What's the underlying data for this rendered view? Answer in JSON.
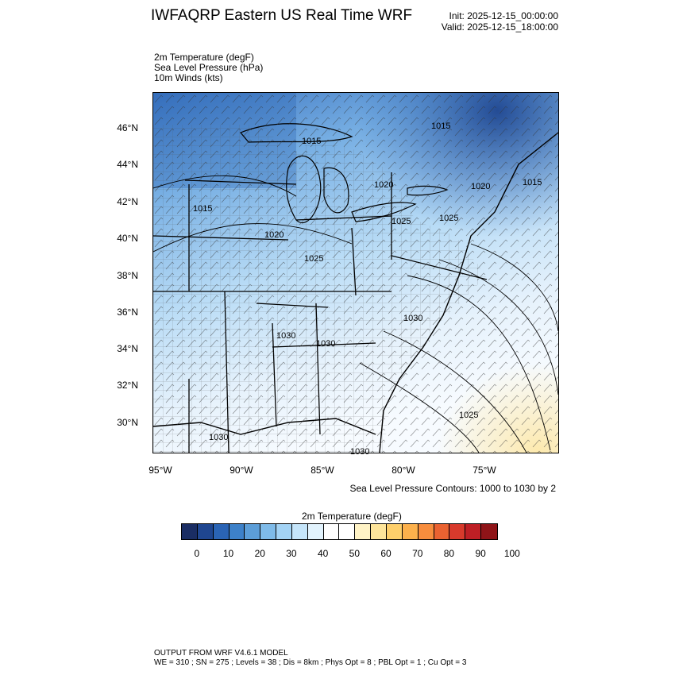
{
  "header": {
    "title": "IWFAQRP Eastern US Real Time WRF",
    "init": "Init: 2025-12-15_00:00:00",
    "valid": "Valid: 2025-12-15_18:00:00"
  },
  "fields": [
    "2m Temperature   (degF)",
    "Sea Level Pressure   (hPa)",
    "10m Winds   (kts)"
  ],
  "map": {
    "lat_labels": [
      "46°N",
      "44°N",
      "42°N",
      "40°N",
      "38°N",
      "36°N",
      "34°N",
      "32°N",
      "30°N"
    ],
    "lon_labels": [
      "95°W",
      "90°W",
      "85°W",
      "80°W",
      "75°W"
    ],
    "pressure_labels": [
      "1015",
      "1015",
      "1015",
      "1015",
      "1020",
      "1020",
      "1020",
      "1025",
      "1025",
      "1025",
      "1030",
      "1030",
      "1030",
      "1030",
      "1030",
      "1025"
    ],
    "colors": {
      "cold": "#2b63ad",
      "cool": "#7fb6e6",
      "mild": "#dfeefb",
      "warm": "#fdebb5"
    }
  },
  "contours_note": "Sea Level Pressure Contours: 1000 to 1030 by 2",
  "colorbar": {
    "title": "2m Temperature  (degF)",
    "colors": [
      "#1a2d63",
      "#1f4690",
      "#2a64b5",
      "#3d81c9",
      "#5c9ed8",
      "#7fbbe9",
      "#a3d3f5",
      "#c5e5fa",
      "#e2f3fd",
      "#ffffff",
      "#ffffff",
      "#fff3c6",
      "#fee59b",
      "#fecf6b",
      "#fdb14c",
      "#f78d3d",
      "#ea6231",
      "#d83a2c",
      "#be1f25",
      "#8f1418"
    ],
    "ticks": [
      "0",
      "10",
      "20",
      "30",
      "40",
      "50",
      "60",
      "70",
      "80",
      "90",
      "100"
    ]
  },
  "model": {
    "line1": "OUTPUT FROM WRF V4.6.1 MODEL",
    "line2": "WE = 310 ; SN = 275 ; Levels = 38 ; Dis = 8km ; Phys Opt = 8 ; PBL Opt = 1 ; Cu Opt = 3"
  }
}
